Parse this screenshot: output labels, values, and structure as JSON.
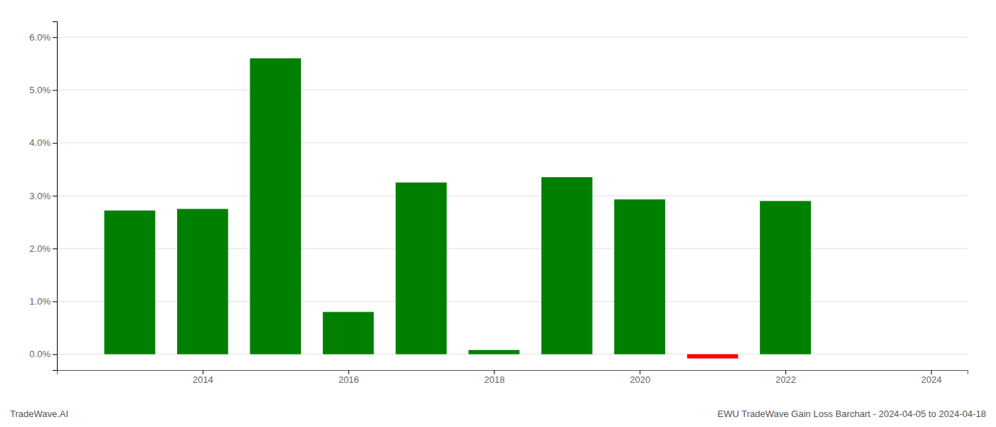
{
  "chart_data": {
    "type": "bar",
    "title": "EWU TradeWave Gain Loss Barchart - 2024-04-05 to 2024-04-18",
    "annotations": [
      "TradeWave.AI"
    ],
    "x": [
      2013,
      2014,
      2015,
      2016,
      2017,
      2018,
      2019,
      2020,
      2021,
      2022
    ],
    "values": [
      0.0272,
      0.0275,
      0.056,
      0.008,
      0.0325,
      0.0008,
      0.0335,
      0.0293,
      -0.0008,
      0.029
    ],
    "colors": [
      "#008000",
      "#008000",
      "#008000",
      "#008000",
      "#008000",
      "#008000",
      "#008000",
      "#008000",
      "#ff0000",
      "#008000"
    ],
    "xlim": [
      2012.0,
      2024.5
    ],
    "xticks": [
      2014,
      2016,
      2018,
      2020,
      2022,
      2024
    ],
    "ylim": [
      -0.003,
      0.063
    ],
    "yticks": [
      {
        "value": 0.0,
        "label": "0.0%"
      },
      {
        "value": 0.01,
        "label": "1.0%"
      },
      {
        "value": 0.02,
        "label": "2.0%"
      },
      {
        "value": 0.03,
        "label": "3.0%"
      },
      {
        "value": 0.04,
        "label": "4.0%"
      },
      {
        "value": 0.05,
        "label": "5.0%"
      },
      {
        "value": 0.06,
        "label": "6.0%"
      }
    ],
    "grid": true
  }
}
